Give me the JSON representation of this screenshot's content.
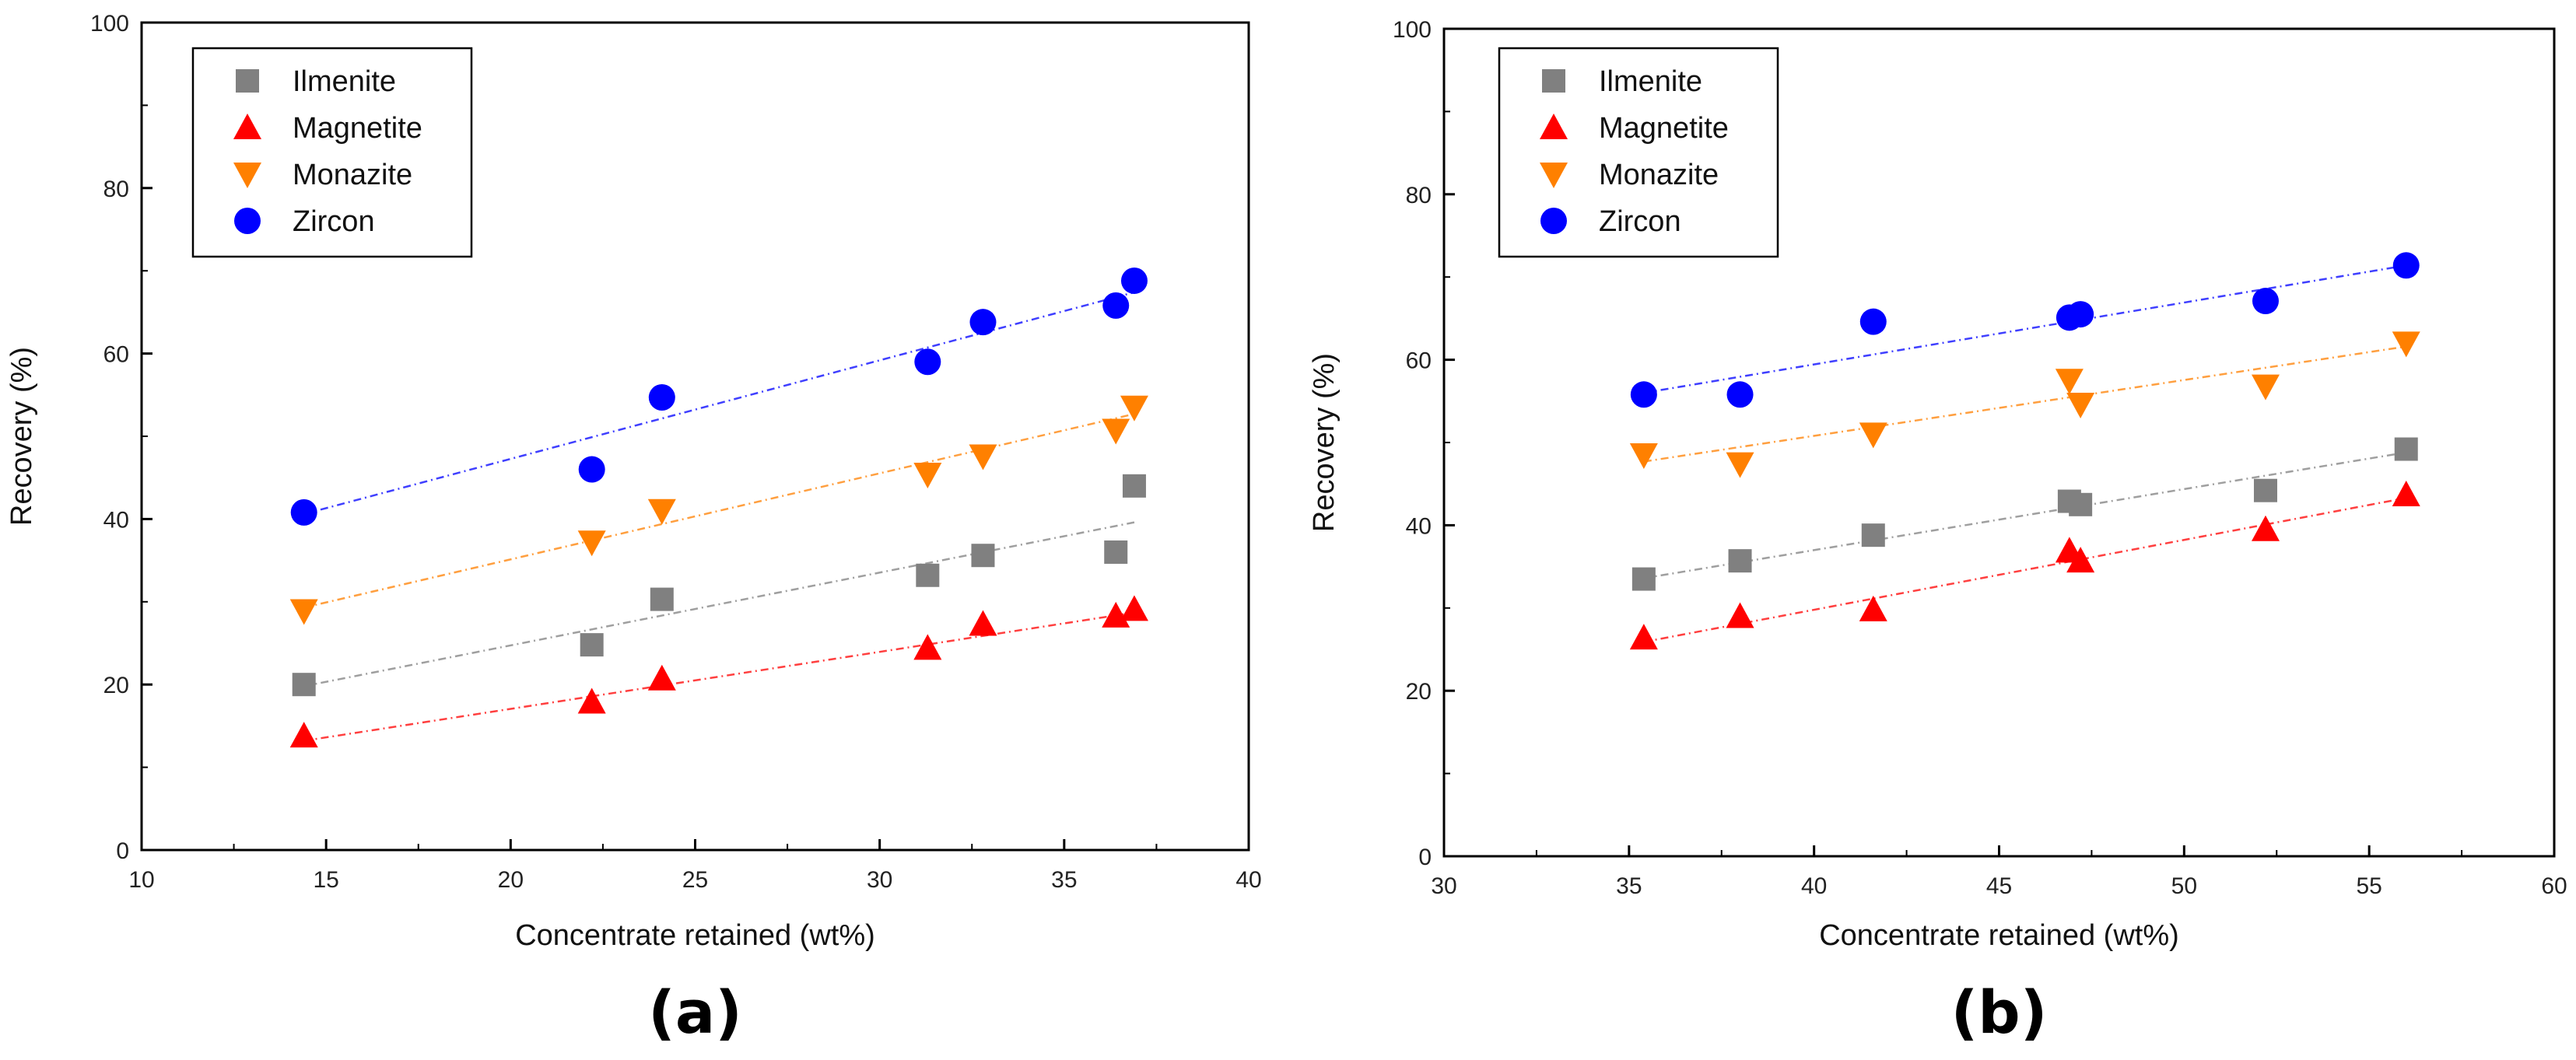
{
  "chart_data": [
    {
      "type": "scatter",
      "panel_label": "(a)",
      "xlabel": "Concentrate retained (wt%)",
      "ylabel": "Recovery (%)",
      "xlim": [
        10,
        40
      ],
      "ylim": [
        0,
        100
      ],
      "xticks": [
        10,
        15,
        20,
        25,
        30,
        35,
        40
      ],
      "yticks": [
        0,
        20,
        40,
        60,
        80,
        100
      ],
      "legend_position": "top-left",
      "grid": false,
      "trendlines": true,
      "x": [
        14.4,
        22.2,
        24.1,
        31.3,
        32.8,
        36.4,
        36.9
      ],
      "series": [
        {
          "name": "Ilmenite",
          "marker": "square",
          "color": "#808080",
          "values": [
            20.0,
            24.8,
            30.3,
            33.2,
            35.6,
            36.0,
            44.0
          ],
          "fit": [
            [
              14.4,
              19.8
            ],
            [
              36.9,
              39.6
            ]
          ]
        },
        {
          "name": "Magnetite",
          "marker": "triangle-up",
          "color": "#ff0000",
          "values": [
            13.8,
            17.9,
            20.7,
            24.4,
            27.3,
            28.3,
            29.1
          ],
          "fit": [
            [
              14.4,
              13.2
            ],
            [
              36.9,
              28.7
            ]
          ]
        },
        {
          "name": "Monazite",
          "marker": "triangle-down",
          "color": "#ff8000",
          "values": [
            28.9,
            37.2,
            41.0,
            45.4,
            47.6,
            50.7,
            53.5
          ],
          "fit": [
            [
              14.4,
              29.3
            ],
            [
              36.9,
              52.7
            ]
          ]
        },
        {
          "name": "Zircon",
          "marker": "circle",
          "color": "#0000ff",
          "values": [
            40.8,
            46.0,
            54.7,
            59.0,
            63.8,
            65.8,
            68.8
          ],
          "fit": [
            [
              14.4,
              40.6
            ],
            [
              36.9,
              67.4
            ]
          ]
        }
      ]
    },
    {
      "type": "scatter",
      "panel_label": "(b)",
      "xlabel": "Concentrate retained (wt%)",
      "ylabel": "Recovery (%)",
      "xlim": [
        30,
        60
      ],
      "ylim": [
        0,
        100
      ],
      "xticks": [
        30,
        35,
        40,
        45,
        50,
        55,
        60
      ],
      "yticks": [
        0,
        20,
        40,
        60,
        80,
        100
      ],
      "legend_position": "top-left",
      "grid": false,
      "trendlines": true,
      "x": [
        35.4,
        38.0,
        41.6,
        46.9,
        47.2,
        52.2,
        56.0
      ],
      "series": [
        {
          "name": "Ilmenite",
          "marker": "square",
          "color": "#808080",
          "values": [
            33.5,
            35.7,
            38.8,
            42.9,
            42.5,
            44.2,
            49.2
          ],
          "fit": [
            [
              35.4,
              33.6
            ],
            [
              56.0,
              48.8
            ]
          ]
        },
        {
          "name": "Magnetite",
          "marker": "triangle-up",
          "color": "#ff0000",
          "values": [
            26.4,
            29.0,
            29.8,
            36.9,
            35.7,
            39.5,
            43.7
          ],
          "fit": [
            [
              35.4,
              25.9
            ],
            [
              56.0,
              43.3
            ]
          ]
        },
        {
          "name": "Monazite",
          "marker": "triangle-down",
          "color": "#ff8000",
          "values": [
            48.5,
            47.4,
            51.0,
            57.5,
            54.6,
            56.8,
            62.0
          ],
          "fit": [
            [
              35.4,
              47.7
            ],
            [
              56.0,
              61.6
            ]
          ]
        },
        {
          "name": "Zircon",
          "marker": "circle",
          "color": "#0000ff",
          "values": [
            55.8,
            55.8,
            64.6,
            65.1,
            65.5,
            67.1,
            71.4
          ],
          "fit": [
            [
              35.4,
              56.0
            ],
            [
              56.0,
              71.4
            ]
          ]
        }
      ]
    }
  ]
}
